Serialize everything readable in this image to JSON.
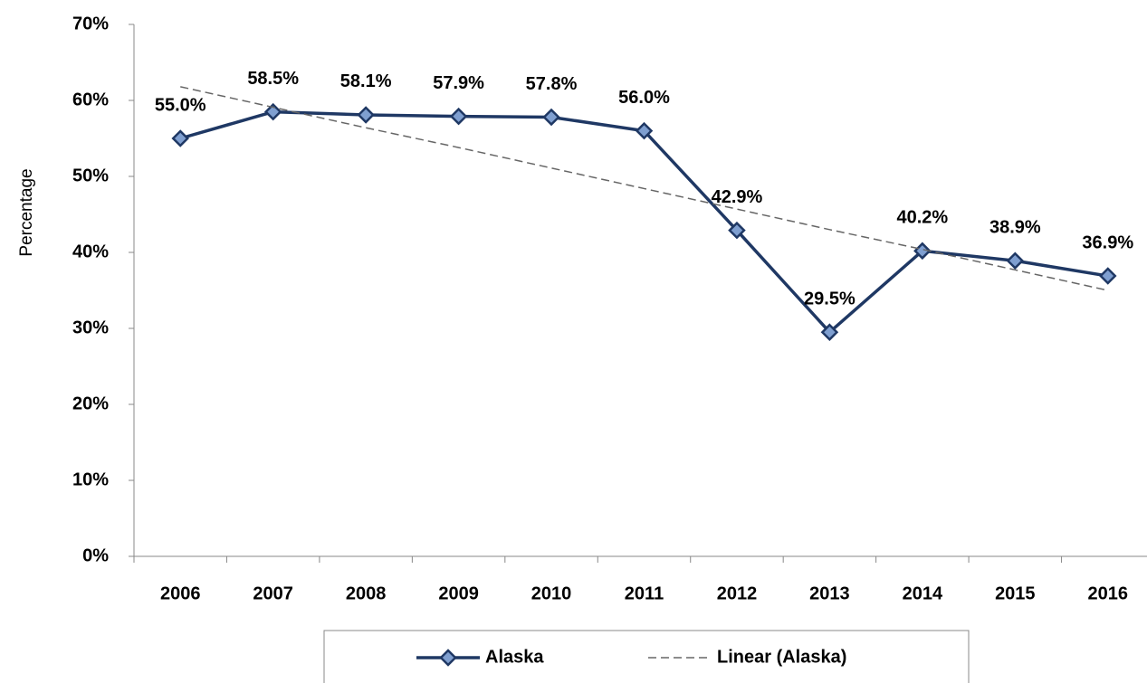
{
  "chart_data": {
    "type": "line",
    "y_label": "Percentage",
    "categories": [
      "2006",
      "2007",
      "2008",
      "2009",
      "2010",
      "2011",
      "2012",
      "2013",
      "2014",
      "2015",
      "2016"
    ],
    "series": [
      {
        "name": "Alaska",
        "color": "#1f3864",
        "marker_color": "#7f9fd0",
        "marker": "diamond",
        "values": [
          55.0,
          58.5,
          58.1,
          57.9,
          57.8,
          56.0,
          42.9,
          29.5,
          40.2,
          38.9,
          36.9
        ],
        "value_labels": [
          "55.0%",
          "58.5%",
          "58.1%",
          "57.9%",
          "57.8%",
          "56.0%",
          "42.9%",
          "29.5%",
          "40.2%",
          "38.9%",
          "36.9%"
        ]
      },
      {
        "name": "Linear (Alaska)",
        "color": "#666666",
        "dash": true,
        "values": [
          61.8,
          59.1,
          56.4,
          53.8,
          51.1,
          48.4,
          45.7,
          43.0,
          40.4,
          37.7,
          35.0
        ]
      }
    ],
    "ylim": [
      0,
      70
    ],
    "yticks": [
      {
        "value": 0,
        "label": "0%"
      },
      {
        "value": 10,
        "label": "10%"
      },
      {
        "value": 20,
        "label": "20%"
      },
      {
        "value": 30,
        "label": "30%"
      },
      {
        "value": 40,
        "label": "40%"
      },
      {
        "value": 50,
        "label": "50%"
      },
      {
        "value": 60,
        "label": "60%"
      },
      {
        "value": 70,
        "label": "70%"
      }
    ],
    "grid": false,
    "legend": "bottom"
  }
}
